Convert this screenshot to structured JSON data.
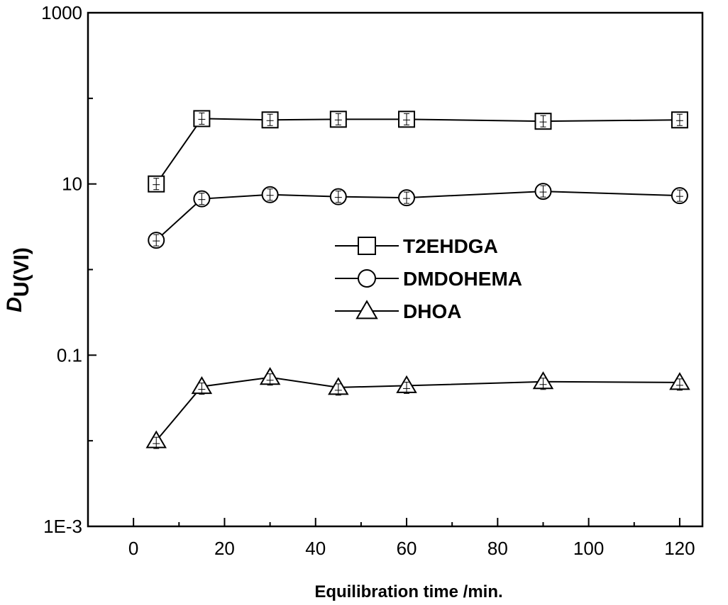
{
  "chart_data": {
    "type": "line",
    "xlabel": "Equilibration time /min.",
    "ylabel_main": "D",
    "ylabel_sub": "U(VI)",
    "xlim": [
      -10,
      125
    ],
    "ylim": [
      0.001,
      1000
    ],
    "yscale": "log",
    "x_ticks": [
      0,
      20,
      40,
      60,
      80,
      100,
      120
    ],
    "x_tick_labels": [
      "0",
      "20",
      "40",
      "60",
      "80",
      "100",
      "120"
    ],
    "y_ticks": [
      0.001,
      0.1,
      10,
      1000
    ],
    "y_tick_labels": [
      "1E-3",
      "0.1",
      "10",
      "1000"
    ],
    "y_minor_ticks": [
      0.01,
      1,
      100
    ],
    "grid": false,
    "legend_position": "center-right",
    "series": [
      {
        "name": "T2EHDGA",
        "marker": "square",
        "x": [
          5,
          15,
          30,
          45,
          60,
          90,
          120
        ],
        "y": [
          10,
          58,
          56,
          57,
          57,
          54,
          56
        ]
      },
      {
        "name": "DMDOHEMA",
        "marker": "circle",
        "x": [
          5,
          15,
          30,
          45,
          60,
          90,
          120
        ],
        "y": [
          2.2,
          6.7,
          7.5,
          7.1,
          6.9,
          8.2,
          7.3
        ]
      },
      {
        "name": "DHOA",
        "marker": "triangle",
        "x": [
          5,
          15,
          30,
          45,
          60,
          90,
          120
        ],
        "y": [
          0.01,
          0.043,
          0.055,
          0.042,
          0.044,
          0.049,
          0.048
        ]
      }
    ]
  }
}
